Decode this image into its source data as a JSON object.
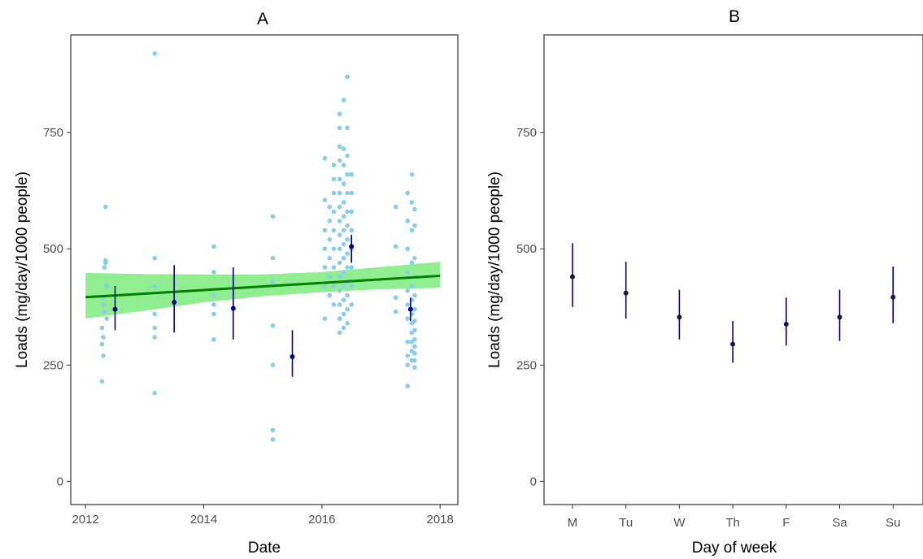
{
  "chart_data": [
    {
      "type": "scatter",
      "title": "A",
      "xlabel": "Date",
      "ylabel": "Loads (mg/day/1000 people)",
      "xlim": [
        2011.75,
        2018.3
      ],
      "ylim": [
        -50,
        960
      ],
      "xticks": [
        2012,
        2014,
        2016,
        2018
      ],
      "xtick_labels": [
        "2012",
        "2014",
        "2016",
        "2018"
      ],
      "yticks": [
        0,
        250,
        500,
        750
      ],
      "ytick_labels": [
        "0",
        "250",
        "500",
        "750"
      ],
      "grid": false,
      "colors": {
        "points": "#87ceeb",
        "means": "#00008b",
        "trend": "#008000",
        "ribbon": "#90ee90"
      },
      "points": [
        [
          2012.28,
          215
        ],
        [
          2012.28,
          295
        ],
        [
          2012.28,
          330
        ],
        [
          2012.3,
          270
        ],
        [
          2012.3,
          380
        ],
        [
          2012.3,
          395
        ],
        [
          2012.3,
          310
        ],
        [
          2012.32,
          365
        ],
        [
          2012.32,
          460
        ],
        [
          2012.34,
          475
        ],
        [
          2012.34,
          470
        ],
        [
          2012.34,
          590
        ],
        [
          2012.36,
          350
        ],
        [
          2012.36,
          420
        ],
        [
          2013.17,
          920
        ],
        [
          2013.17,
          480
        ],
        [
          2013.17,
          420
        ],
        [
          2013.17,
          360
        ],
        [
          2013.17,
          330
        ],
        [
          2013.17,
          190
        ],
        [
          2013.17,
          310
        ],
        [
          2014.17,
          505
        ],
        [
          2014.17,
          450
        ],
        [
          2014.17,
          400
        ],
        [
          2014.17,
          380
        ],
        [
          2014.17,
          360
        ],
        [
          2014.17,
          305
        ],
        [
          2015.17,
          570
        ],
        [
          2015.17,
          480
        ],
        [
          2015.17,
          430
        ],
        [
          2015.17,
          335
        ],
        [
          2015.17,
          250
        ],
        [
          2015.17,
          110
        ],
        [
          2015.17,
          90
        ],
        [
          2016.05,
          695
        ],
        [
          2016.05,
          605
        ],
        [
          2016.05,
          540
        ],
        [
          2016.05,
          500
        ],
        [
          2016.05,
          460
        ],
        [
          2016.05,
          420
        ],
        [
          2016.05,
          350
        ],
        [
          2016.13,
          590
        ],
        [
          2016.13,
          560
        ],
        [
          2016.13,
          520
        ],
        [
          2016.13,
          480
        ],
        [
          2016.13,
          440
        ],
        [
          2016.13,
          400
        ],
        [
          2016.2,
          680
        ],
        [
          2016.2,
          650
        ],
        [
          2016.2,
          620
        ],
        [
          2016.2,
          580
        ],
        [
          2016.2,
          540
        ],
        [
          2016.2,
          500
        ],
        [
          2016.2,
          460
        ],
        [
          2016.2,
          420
        ],
        [
          2016.2,
          380
        ],
        [
          2016.3,
          790
        ],
        [
          2016.3,
          760
        ],
        [
          2016.3,
          720
        ],
        [
          2016.3,
          690
        ],
        [
          2016.3,
          650
        ],
        [
          2016.3,
          620
        ],
        [
          2016.3,
          590
        ],
        [
          2016.3,
          560
        ],
        [
          2016.3,
          530
        ],
        [
          2016.3,
          500
        ],
        [
          2016.3,
          470
        ],
        [
          2016.3,
          440
        ],
        [
          2016.3,
          410
        ],
        [
          2016.3,
          380
        ],
        [
          2016.3,
          350
        ],
        [
          2016.3,
          320
        ],
        [
          2016.37,
          820
        ],
        [
          2016.37,
          715
        ],
        [
          2016.37,
          680
        ],
        [
          2016.37,
          640
        ],
        [
          2016.37,
          600
        ],
        [
          2016.37,
          570
        ],
        [
          2016.37,
          540
        ],
        [
          2016.37,
          510
        ],
        [
          2016.37,
          480
        ],
        [
          2016.37,
          450
        ],
        [
          2016.37,
          420
        ],
        [
          2016.37,
          390
        ],
        [
          2016.37,
          360
        ],
        [
          2016.37,
          330
        ],
        [
          2016.43,
          870
        ],
        [
          2016.43,
          760
        ],
        [
          2016.43,
          700
        ],
        [
          2016.43,
          660
        ],
        [
          2016.43,
          620
        ],
        [
          2016.43,
          580
        ],
        [
          2016.43,
          550
        ],
        [
          2016.43,
          520
        ],
        [
          2016.43,
          490
        ],
        [
          2016.43,
          460
        ],
        [
          2016.43,
          430
        ],
        [
          2016.43,
          400
        ],
        [
          2016.43,
          370
        ],
        [
          2016.43,
          340
        ],
        [
          2016.5,
          660
        ],
        [
          2016.5,
          620
        ],
        [
          2016.5,
          580
        ],
        [
          2016.5,
          540
        ],
        [
          2016.5,
          500
        ],
        [
          2016.5,
          460
        ],
        [
          2016.5,
          420
        ],
        [
          2016.5,
          380
        ],
        [
          2017.25,
          590
        ],
        [
          2017.25,
          505
        ],
        [
          2017.25,
          395
        ],
        [
          2017.25,
          365
        ],
        [
          2017.45,
          620
        ],
        [
          2017.45,
          560
        ],
        [
          2017.45,
          500
        ],
        [
          2017.45,
          450
        ],
        [
          2017.45,
          410
        ],
        [
          2017.45,
          380
        ],
        [
          2017.45,
          350
        ],
        [
          2017.45,
          300
        ],
        [
          2017.45,
          270
        ],
        [
          2017.45,
          250
        ],
        [
          2017.45,
          205
        ],
        [
          2017.52,
          660
        ],
        [
          2017.52,
          600
        ],
        [
          2017.52,
          540
        ],
        [
          2017.52,
          470
        ],
        [
          2017.52,
          420
        ],
        [
          2017.52,
          390
        ],
        [
          2017.52,
          360
        ],
        [
          2017.52,
          340
        ],
        [
          2017.52,
          320
        ],
        [
          2017.52,
          300
        ],
        [
          2017.52,
          280
        ],
        [
          2017.52,
          260
        ],
        [
          2017.57,
          585
        ],
        [
          2017.57,
          550
        ],
        [
          2017.57,
          480
        ],
        [
          2017.57,
          440
        ],
        [
          2017.57,
          400
        ],
        [
          2017.57,
          370
        ],
        [
          2017.57,
          345
        ],
        [
          2017.57,
          325
        ],
        [
          2017.57,
          305
        ],
        [
          2017.57,
          290
        ],
        [
          2017.57,
          275
        ],
        [
          2017.57,
          260
        ],
        [
          2017.57,
          245
        ]
      ],
      "means": [
        {
          "x": 2012.5,
          "y": 370,
          "lo": 325,
          "hi": 420
        },
        {
          "x": 2013.5,
          "y": 385,
          "lo": 320,
          "hi": 465
        },
        {
          "x": 2014.5,
          "y": 372,
          "lo": 305,
          "hi": 460
        },
        {
          "x": 2015.5,
          "y": 268,
          "lo": 225,
          "hi": 325
        },
        {
          "x": 2016.5,
          "y": 505,
          "lo": 470,
          "hi": 530
        },
        {
          "x": 2017.5,
          "y": 370,
          "lo": 345,
          "hi": 395
        }
      ],
      "trend": {
        "x0": 2012.0,
        "y0": 396,
        "x1": 2018.0,
        "y1": 442
      },
      "ribbon": {
        "x": [
          2012.0,
          2013.0,
          2014.0,
          2015.0,
          2016.0,
          2017.0,
          2018.0
        ],
        "lo": [
          350,
          367,
          385,
          398,
          407,
          413,
          416
        ],
        "hi": [
          448,
          446,
          445,
          445,
          450,
          461,
          472
        ]
      }
    },
    {
      "type": "scatter",
      "title": "B",
      "xlabel": "Day of week",
      "ylabel": "Loads (mg/day/1000 people)",
      "categories": [
        "M",
        "Tu",
        "W",
        "Th",
        "F",
        "Sa",
        "Su"
      ],
      "ylim": [
        -50,
        960
      ],
      "yticks": [
        0,
        250,
        500,
        750
      ],
      "ytick_labels": [
        "0",
        "250",
        "500",
        "750"
      ],
      "grid": false,
      "colors": {
        "means": "#00008b",
        "point": "#1a1a2e"
      },
      "values": [
        440,
        405,
        353,
        295,
        338,
        353,
        396
      ],
      "lo": [
        375,
        350,
        305,
        255,
        292,
        302,
        340
      ],
      "hi": [
        512,
        472,
        412,
        345,
        395,
        412,
        462
      ]
    }
  ]
}
